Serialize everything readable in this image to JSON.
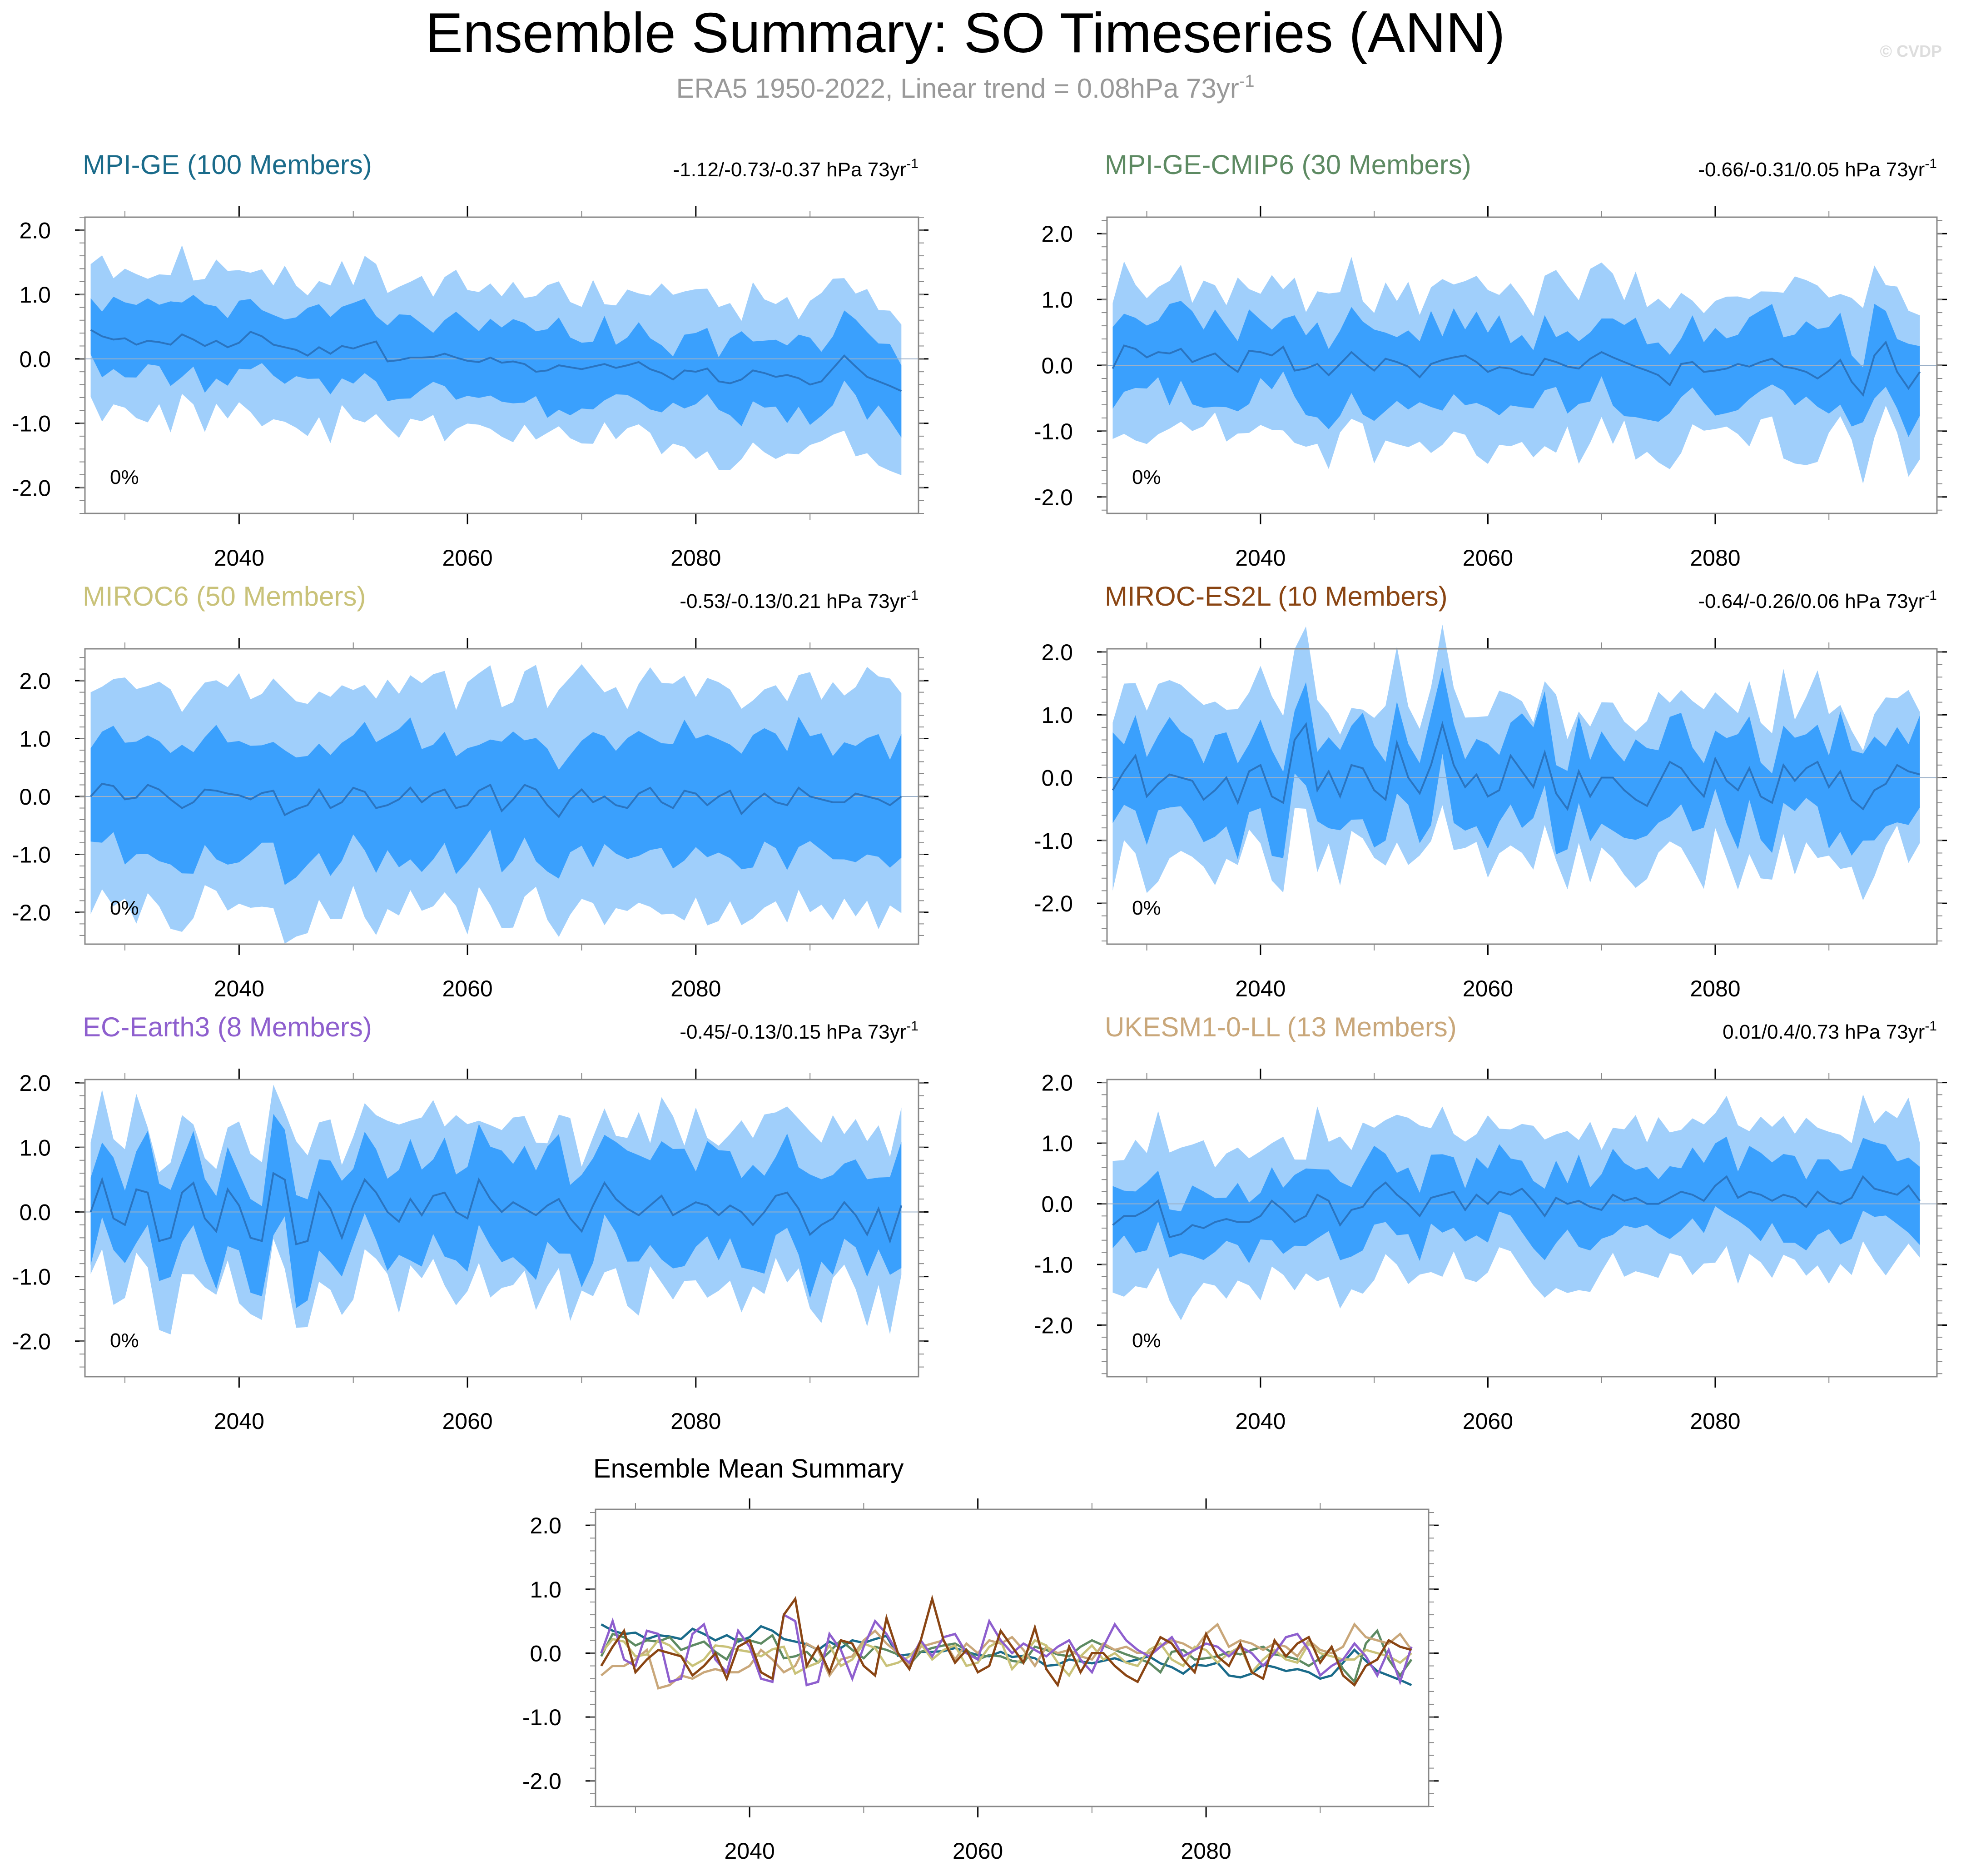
{
  "title": "Ensemble Summary: SO Timeseries (ANN)",
  "subtitle": {
    "main": "ERA5 1950-2022, Linear trend = 0.08hPa 73yr",
    "sup": "-1"
  },
  "watermark": "© CVDP",
  "colors": {
    "outer_band": "#a0cffb",
    "inner_band": "#3aa0fd",
    "mean_line": "#2a74c0",
    "zero_line": "#9bb0c8",
    "axis": "#888888",
    "subtitle": "#999999"
  },
  "chart_data": [
    {
      "type": "area",
      "title": "MPI-GE (100 Members)",
      "title_color": "#1a6b8a",
      "trend_label": "-1.12/-0.73/-0.37 hPa 73yr",
      "trend_sup": "-1",
      "percent_label": "0%",
      "x_start": 2027,
      "xlim": [
        2026.5,
        2099.5
      ],
      "ylim": [
        -2.4,
        2.2
      ],
      "yticks": [
        2.0,
        1.0,
        0.0,
        -1.0,
        -2.0
      ],
      "ytick_labels": [
        "2.0",
        "1.0",
        "0.0",
        "-1.0",
        "-2.0"
      ],
      "xticks": [
        2040,
        2060,
        2080
      ],
      "xtick_labels": [
        "2040",
        "2060",
        "2080"
      ],
      "seed": 11,
      "mean": [
        0.45,
        0.35,
        0.3,
        0.32,
        0.22,
        0.28,
        0.26,
        0.22,
        0.38,
        0.3,
        0.2,
        0.28,
        0.18,
        0.25,
        0.42,
        0.35,
        0.22,
        0.18,
        0.14,
        0.05,
        0.18,
        0.08,
        0.2,
        0.16,
        0.22,
        0.27,
        -0.04,
        -0.02,
        0.02,
        0.02,
        0.03,
        0.08,
        0.02,
        -0.03,
        -0.05,
        0.02,
        -0.06,
        -0.04,
        -0.08,
        -0.2,
        -0.18,
        -0.1,
        -0.13,
        -0.16,
        -0.12,
        -0.08,
        -0.14,
        -0.1,
        -0.05,
        -0.16,
        -0.22,
        -0.32,
        -0.18,
        -0.2,
        -0.15,
        -0.35,
        -0.38,
        -0.32,
        -0.18,
        -0.22,
        -0.28,
        -0.25,
        -0.3,
        -0.4,
        -0.35,
        -0.15,
        0.05,
        -0.12,
        -0.28,
        -0.35,
        -0.42,
        -0.5
      ],
      "half_inner": 0.55,
      "half_outer": 1.15,
      "noise": 0.25
    },
    {
      "type": "area",
      "title": "MPI-GE-CMIP6 (30 Members)",
      "title_color": "#5d8a62",
      "trend_label": "-0.66/-0.31/0.05 hPa 73yr",
      "trend_sup": "-1",
      "percent_label": "0%",
      "x_start": 2027,
      "xlim": [
        2026.5,
        2099.5
      ],
      "ylim": [
        -2.25,
        2.25
      ],
      "yticks": [
        2.0,
        1.0,
        0.0,
        -1.0,
        -2.0
      ],
      "ytick_labels": [
        "2.0",
        "1.0",
        "0.0",
        "-1.0",
        "-2.0"
      ],
      "xticks": [
        2040,
        2060,
        2080
      ],
      "xtick_labels": [
        "2040",
        "2060",
        "2080"
      ],
      "seed": 23,
      "mean": [
        -0.05,
        0.3,
        0.25,
        0.12,
        0.2,
        0.18,
        0.25,
        0.05,
        0.12,
        0.18,
        0.02,
        -0.1,
        0.22,
        0.2,
        0.15,
        0.28,
        -0.08,
        -0.05,
        0.02,
        -0.15,
        0.02,
        0.2,
        0.05,
        -0.08,
        0.1,
        0.05,
        -0.02,
        -0.18,
        0.02,
        0.08,
        0.12,
        0.15,
        0.05,
        -0.1,
        -0.03,
        -0.05,
        -0.12,
        -0.15,
        0.1,
        0.05,
        -0.02,
        -0.05,
        0.1,
        0.2,
        0.12,
        0.05,
        -0.02,
        -0.08,
        -0.15,
        -0.3,
        0.02,
        0.05,
        -0.1,
        -0.08,
        -0.05,
        0.02,
        -0.02,
        0.05,
        0.1,
        -0.02,
        -0.05,
        -0.1,
        -0.2,
        -0.08,
        0.08,
        -0.25,
        -0.45,
        0.15,
        0.35,
        -0.1,
        -0.35,
        -0.1
      ],
      "half_inner": 0.6,
      "half_outer": 1.15,
      "noise": 0.3
    },
    {
      "type": "area",
      "title": "MIROC6 (50 Members)",
      "title_color": "#c9c279",
      "trend_label": "-0.53/-0.13/0.21 hPa 73yr",
      "trend_sup": "-1",
      "percent_label": "0%",
      "x_start": 2027,
      "xlim": [
        2026.5,
        2099.5
      ],
      "ylim": [
        -2.55,
        2.55
      ],
      "yticks": [
        2.0,
        1.0,
        0.0,
        -1.0,
        -2.0
      ],
      "ytick_labels": [
        "2.0",
        "1.0",
        "0.0",
        "-1.0",
        "-2.0"
      ],
      "xticks": [
        2040,
        2060,
        2080
      ],
      "xtick_labels": [
        "2040",
        "2060",
        "2080"
      ],
      "seed": 37,
      "mean": [
        0.0,
        0.22,
        0.18,
        -0.05,
        -0.02,
        0.2,
        0.12,
        -0.05,
        -0.2,
        -0.1,
        0.12,
        0.1,
        0.05,
        0.02,
        -0.05,
        0.06,
        0.1,
        -0.32,
        -0.22,
        -0.15,
        0.12,
        -0.2,
        -0.1,
        0.15,
        0.08,
        -0.2,
        -0.15,
        -0.05,
        0.15,
        -0.1,
        0.05,
        0.12,
        -0.2,
        -0.15,
        0.1,
        0.2,
        -0.25,
        -0.05,
        0.2,
        0.12,
        -0.15,
        -0.35,
        -0.05,
        0.12,
        -0.1,
        0.0,
        -0.15,
        -0.2,
        0.05,
        0.15,
        -0.1,
        -0.2,
        0.1,
        0.05,
        -0.15,
        0.0,
        0.1,
        -0.3,
        -0.1,
        0.05,
        -0.1,
        -0.15,
        0.15,
        0.0,
        -0.05,
        -0.1,
        -0.1,
        0.05,
        0.0,
        -0.05,
        -0.15,
        0.0
      ],
      "half_inner": 1.0,
      "half_outer": 1.95,
      "noise": 0.3
    },
    {
      "type": "area",
      "title": "MIROC-ES2L (10 Members)",
      "title_color": "#8a4513",
      "trend_label": "-0.64/-0.26/0.06 hPa 73yr",
      "trend_sup": "-1",
      "percent_label": "0%",
      "x_start": 2027,
      "xlim": [
        2026.5,
        2099.5
      ],
      "ylim": [
        -2.65,
        2.05
      ],
      "yticks": [
        2.0,
        1.0,
        0.0,
        -1.0,
        -2.0
      ],
      "ytick_labels": [
        "2.0",
        "1.0",
        "0.0",
        "-1.0",
        "-2.0"
      ],
      "xticks": [
        2040,
        2060,
        2080
      ],
      "xtick_labels": [
        "2040",
        "2060",
        "2080"
      ],
      "seed": 41,
      "mean": [
        -0.2,
        0.1,
        0.35,
        -0.3,
        -0.1,
        0.05,
        0.0,
        -0.05,
        -0.35,
        -0.2,
        0.0,
        -0.4,
        0.1,
        0.2,
        -0.3,
        -0.4,
        0.6,
        0.85,
        -0.2,
        0.1,
        -0.3,
        0.2,
        0.15,
        -0.2,
        -0.35,
        0.55,
        0.0,
        -0.25,
        0.2,
        0.85,
        0.2,
        -0.15,
        0.05,
        -0.3,
        -0.2,
        0.35,
        0.1,
        -0.15,
        0.4,
        -0.25,
        -0.5,
        0.1,
        -0.3,
        0.0,
        0.0,
        -0.2,
        -0.35,
        -0.45,
        -0.1,
        0.25,
        0.15,
        -0.1,
        -0.3,
        0.3,
        -0.05,
        -0.2,
        0.15,
        -0.3,
        -0.4,
        0.2,
        -0.05,
        0.15,
        0.25,
        -0.15,
        0.1,
        -0.35,
        -0.5,
        -0.2,
        -0.1,
        0.2,
        0.1,
        0.05
      ],
      "half_inner": 0.7,
      "half_outer": 1.25,
      "noise": 0.35
    },
    {
      "type": "area",
      "title": "EC-Earth3 (8 Members)",
      "title_color": "#8e5fce",
      "trend_label": "-0.45/-0.13/0.15 hPa 73yr",
      "trend_sup": "-1",
      "percent_label": "0%",
      "x_start": 2027,
      "xlim": [
        2026.5,
        2099.5
      ],
      "ylim": [
        -2.55,
        2.05
      ],
      "yticks": [
        2.0,
        1.0,
        0.0,
        -1.0,
        -2.0
      ],
      "ytick_labels": [
        "2.0",
        "1.0",
        "0.0",
        "-1.0",
        "-2.0"
      ],
      "xticks": [
        2040,
        2060,
        2080
      ],
      "xtick_labels": [
        "2040",
        "2060",
        "2080"
      ],
      "seed": 53,
      "mean": [
        0.0,
        0.5,
        -0.1,
        -0.2,
        0.35,
        0.3,
        -0.45,
        -0.4,
        0.3,
        0.45,
        -0.1,
        -0.3,
        0.35,
        0.1,
        -0.4,
        -0.45,
        0.6,
        0.5,
        -0.5,
        -0.45,
        0.3,
        0.05,
        -0.4,
        0.1,
        0.5,
        0.3,
        0.0,
        -0.15,
        0.2,
        -0.05,
        0.25,
        0.3,
        0.0,
        -0.1,
        0.5,
        0.2,
        0.0,
        0.15,
        0.05,
        -0.05,
        0.1,
        0.2,
        -0.1,
        -0.3,
        0.1,
        0.45,
        0.2,
        0.05,
        -0.05,
        0.1,
        0.25,
        -0.05,
        0.05,
        0.15,
        0.1,
        -0.05,
        0.1,
        0.0,
        -0.2,
        0.0,
        0.25,
        0.3,
        0.05,
        -0.35,
        -0.2,
        -0.1,
        0.15,
        -0.05,
        -0.35,
        0.05,
        -0.45,
        0.1
      ],
      "half_inner": 0.75,
      "half_outer": 1.25,
      "noise": 0.35
    },
    {
      "type": "area",
      "title": "UKESM1-0-LL (13 Members)",
      "title_color": "#c9a77a",
      "trend_label": "0.01/0.4/0.73 hPa 73yr",
      "trend_sup": "-1",
      "percent_label": "0%",
      "x_start": 2027,
      "xlim": [
        2026.5,
        2099.5
      ],
      "ylim": [
        -2.85,
        2.05
      ],
      "yticks": [
        2.0,
        1.0,
        0.0,
        -1.0,
        -2.0
      ],
      "ytick_labels": [
        "2.0",
        "1.0",
        "0.0",
        "-1.0",
        "-2.0"
      ],
      "xticks": [
        2040,
        2060,
        2080
      ],
      "xtick_labels": [
        "2040",
        "2060",
        "2080"
      ],
      "seed": 67,
      "mean": [
        -0.35,
        -0.2,
        -0.2,
        -0.1,
        0.05,
        -0.55,
        -0.5,
        -0.35,
        -0.4,
        -0.3,
        -0.25,
        -0.3,
        -0.3,
        -0.2,
        0.05,
        -0.1,
        -0.3,
        -0.2,
        0.15,
        0.05,
        -0.35,
        -0.1,
        -0.05,
        0.2,
        0.35,
        0.15,
        0.0,
        -0.2,
        0.1,
        0.15,
        0.2,
        -0.1,
        0.15,
        0.0,
        0.2,
        0.15,
        0.25,
        0.05,
        -0.2,
        0.1,
        0.0,
        0.05,
        -0.05,
        -0.1,
        0.15,
        0.05,
        0.1,
        0.0,
        0.0,
        0.1,
        0.2,
        0.15,
        0.05,
        0.3,
        0.45,
        0.1,
        0.2,
        0.15,
        0.05,
        0.15,
        0.1,
        -0.05,
        0.2,
        0.05,
        0.0,
        0.1,
        0.45,
        0.25,
        0.2,
        0.15,
        0.3,
        0.05
      ],
      "half_inner": 0.55,
      "half_outer": 1.2,
      "noise": 0.3
    },
    {
      "type": "line",
      "title": "Ensemble Mean Summary",
      "title_color": "#000000",
      "x_start": 2027,
      "xlim": [
        2026.5,
        2099.5
      ],
      "ylim": [
        -2.4,
        2.25
      ],
      "yticks": [
        2.0,
        1.0,
        0.0,
        -1.0,
        -2.0
      ],
      "ytick_labels": [
        "2.0",
        "1.0",
        "0.0",
        "-1.0",
        "-2.0"
      ],
      "xticks": [
        2040,
        2060,
        2080
      ],
      "xtick_labels": [
        "2040",
        "2060",
        "2080"
      ],
      "series": [
        {
          "name": "MPI-GE",
          "color": "#1a6b8a",
          "from": 0
        },
        {
          "name": "MPI-GE-CMIP6",
          "color": "#5d8a62",
          "from": 1
        },
        {
          "name": "MIROC6",
          "color": "#c9c279",
          "from": 2
        },
        {
          "name": "MIROC-ES2L",
          "color": "#8a4513",
          "from": 3
        },
        {
          "name": "EC-Earth3",
          "color": "#8e5fce",
          "from": 4
        },
        {
          "name": "UKESM1-0-LL",
          "color": "#c9a77a",
          "from": 5
        }
      ]
    }
  ]
}
